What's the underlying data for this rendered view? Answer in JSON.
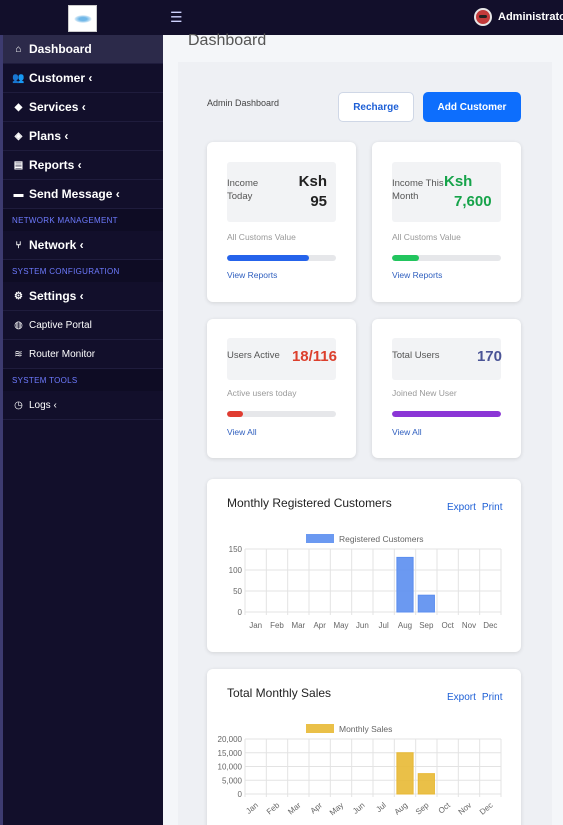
{
  "topbar": {
    "admin_label": "Administrator"
  },
  "sidebar": {
    "items": [
      {
        "label": "Dashboard",
        "icon": "home-icon"
      },
      {
        "label": "Customer",
        "icon": "users-icon"
      },
      {
        "label": "Services",
        "icon": "ticket-icon"
      },
      {
        "label": "Plans",
        "icon": "cube-icon"
      },
      {
        "label": "Reports",
        "icon": "file-icon"
      },
      {
        "label": "Send Message",
        "icon": "message-icon"
      }
    ],
    "section_network": "NETWORK MANAGEMENT",
    "network_label": "Network",
    "section_system": "SYSTEM CONFIGURATION",
    "settings_label": "Settings",
    "captive_label": "Captive Portal",
    "router_label": "Router Monitor",
    "section_tools": "SYSTEM TOOLS",
    "logs_label": "Logs"
  },
  "page": {
    "title": "Dashboard",
    "subtitle": "Admin Dashboard",
    "recharge_label": "Recharge",
    "add_customer_label": "Add Customer"
  },
  "cards": {
    "income_today": {
      "label_1": "Income",
      "label_2": "Today",
      "currency": "Ksh",
      "value": "95",
      "sub": "All Customs Value",
      "link": "View Reports",
      "progress": 0.75,
      "color": "#2563eb"
    },
    "income_month": {
      "label_1": "Income This",
      "label_2": "Month",
      "currency": "Ksh",
      "value": "7,600",
      "sub": "All Customs Value",
      "link": "View Reports",
      "progress": 0.25,
      "color": "#22c55e"
    },
    "users_active": {
      "label": "Users Active",
      "value": "18/116",
      "sub": "Active users today",
      "link": "View All",
      "progress": 0.15,
      "color": "#e03c31"
    },
    "total_users": {
      "label": "Total Users",
      "value": "170",
      "sub": "Joined New User",
      "link": "View All",
      "progress": 1.0,
      "color": "#8b35d6"
    }
  },
  "registered_chart": {
    "title": "Monthly Registered Customers",
    "export_label": "Export",
    "print_label": "Print"
  },
  "sales_chart": {
    "title": "Total Monthly Sales",
    "export_label": "Export",
    "print_label": "Print"
  },
  "chart_data": [
    {
      "type": "bar",
      "categories": [
        "Jan",
        "Feb",
        "Mar",
        "Apr",
        "May",
        "Jun",
        "Jul",
        "Aug",
        "Sep",
        "Oct",
        "Nov",
        "Dec"
      ],
      "series": [
        {
          "name": "Registered Customers",
          "values": [
            0,
            0,
            0,
            0,
            0,
            0,
            0,
            130,
            40,
            0,
            0,
            0
          ],
          "color": "#5b8ef0"
        }
      ],
      "ylim": [
        0,
        150
      ],
      "yticks": [
        "0",
        "50",
        "100",
        "150"
      ],
      "grid": true,
      "legend": "top"
    },
    {
      "type": "bar",
      "categories": [
        "Jan",
        "Feb",
        "Mar",
        "Apr",
        "May",
        "Jun",
        "Jul",
        "Aug",
        "Sep",
        "Oct",
        "Nov",
        "Dec"
      ],
      "series": [
        {
          "name": "Monthly Sales",
          "values": [
            0,
            0,
            0,
            0,
            0,
            0,
            0,
            15000,
            7400,
            0,
            0,
            0
          ],
          "color": "#e8b934"
        }
      ],
      "ylim": [
        0,
        20000
      ],
      "yticks": [
        "0",
        "5,000",
        "10,000",
        "15,000",
        "20,000"
      ],
      "grid": true,
      "legend": "top"
    }
  ]
}
